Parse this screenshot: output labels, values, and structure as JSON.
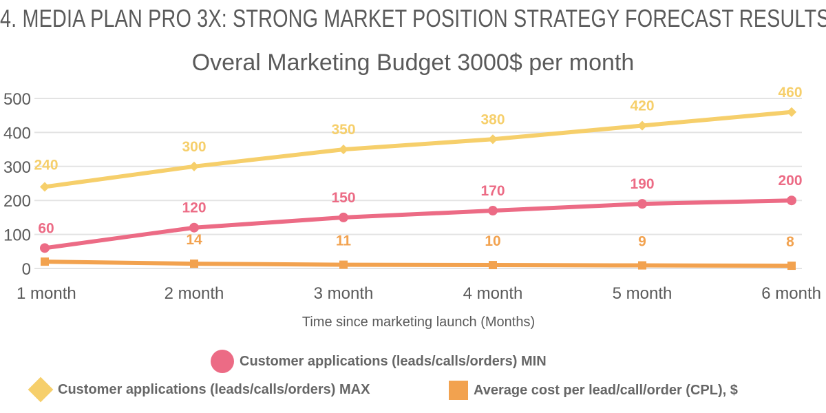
{
  "page_title": "4. MEDIA PLAN PRO 3X: STRONG MARKET POSITION STRATEGY FORECAST RESULTS",
  "chart_data": {
    "type": "line",
    "title": "Overal Marketing Budget 3000$ per month",
    "xlabel": "Time since marketing launch (Months)",
    "ylabel": "",
    "categories": [
      "1 month",
      "2 month",
      "3 month",
      "4 month",
      "5 month",
      "6 month"
    ],
    "ylim": [
      0,
      500
    ],
    "yticks": [
      0,
      100,
      200,
      300,
      400,
      500
    ],
    "grid": true,
    "legend_position": "bottom",
    "series": [
      {
        "name": "Customer applications (leads/calls/orders) MAX",
        "values": [
          240,
          300,
          350,
          380,
          420,
          460
        ],
        "labels": [
          "240",
          "300",
          "350",
          "380",
          "420",
          "460"
        ],
        "color": "#f6cf6b",
        "marker": "diamond"
      },
      {
        "name": "Customer applications (leads/calls/orders) MIN",
        "values": [
          60,
          120,
          150,
          170,
          190,
          200
        ],
        "labels": [
          "60",
          "120",
          "150",
          "170",
          "190",
          "200"
        ],
        "color": "#ec6b85",
        "marker": "circle"
      },
      {
        "name": "Average cost per lead/call/order (CPL), $",
        "values": [
          20,
          14,
          11,
          10,
          9,
          8
        ],
        "labels": [
          "",
          "14",
          "11",
          "10",
          "9",
          "8"
        ],
        "color": "#f2a24f",
        "marker": "square"
      }
    ]
  }
}
